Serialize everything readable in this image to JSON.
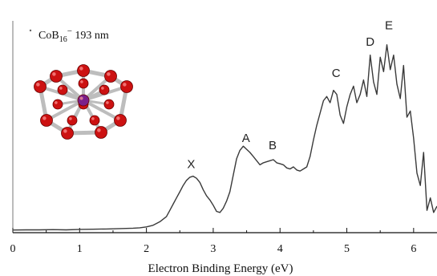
{
  "chart_data": {
    "type": "line",
    "xlabel": "Electron Binding Energy (eV)",
    "ylabel": "",
    "xlim": [
      0,
      6.35
    ],
    "ylim": [
      0,
      1.0
    ],
    "x_ticks": [
      0,
      1,
      2,
      3,
      4,
      5,
      6
    ],
    "x_tick_labels": [
      "0",
      "1",
      "2",
      "3",
      "4",
      "5",
      "6"
    ],
    "grid": false,
    "annotation": {
      "species_base": "CoB",
      "species_sub": "16",
      "species_sup": "−",
      "wavelength": " 193 nm"
    },
    "peak_labels": [
      {
        "text": "X",
        "x": 2.67,
        "y": 0.305
      },
      {
        "text": "A",
        "x": 3.49,
        "y": 0.43
      },
      {
        "text": "B",
        "x": 3.89,
        "y": 0.395
      },
      {
        "text": "C",
        "x": 4.84,
        "y": 0.745
      },
      {
        "text": "D",
        "x": 5.35,
        "y": 0.895
      },
      {
        "text": "E",
        "x": 5.63,
        "y": 0.975
      }
    ],
    "series": [
      {
        "color": "#3a3a3a",
        "x": [
          0.0,
          0.2,
          0.4,
          0.6,
          0.8,
          1.0,
          1.2,
          1.4,
          1.6,
          1.8,
          1.9,
          2.0,
          2.1,
          2.2,
          2.3,
          2.35,
          2.4,
          2.45,
          2.5,
          2.55,
          2.6,
          2.65,
          2.7,
          2.75,
          2.8,
          2.85,
          2.9,
          2.95,
          3.0,
          3.05,
          3.1,
          3.15,
          3.2,
          3.25,
          3.3,
          3.35,
          3.4,
          3.45,
          3.5,
          3.55,
          3.6,
          3.65,
          3.7,
          3.75,
          3.8,
          3.85,
          3.9,
          3.95,
          4.0,
          4.05,
          4.1,
          4.15,
          4.2,
          4.25,
          4.3,
          4.35,
          4.4,
          4.45,
          4.5,
          4.55,
          4.6,
          4.65,
          4.7,
          4.75,
          4.8,
          4.85,
          4.9,
          4.95,
          5.0,
          5.05,
          5.1,
          5.15,
          5.2,
          5.25,
          5.3,
          5.35,
          5.4,
          5.45,
          5.5,
          5.55,
          5.6,
          5.65,
          5.7,
          5.75,
          5.8,
          5.85,
          5.9,
          5.95,
          6.0,
          6.05,
          6.1,
          6.15,
          6.2,
          6.25,
          6.3,
          6.35
        ],
        "y": [
          0.005,
          0.006,
          0.006,
          0.007,
          0.006,
          0.008,
          0.009,
          0.01,
          0.012,
          0.014,
          0.016,
          0.02,
          0.028,
          0.045,
          0.07,
          0.1,
          0.13,
          0.16,
          0.19,
          0.22,
          0.245,
          0.26,
          0.265,
          0.255,
          0.235,
          0.2,
          0.17,
          0.15,
          0.125,
          0.095,
          0.09,
          0.11,
          0.145,
          0.19,
          0.27,
          0.35,
          0.39,
          0.41,
          0.395,
          0.38,
          0.36,
          0.34,
          0.32,
          0.33,
          0.335,
          0.34,
          0.345,
          0.33,
          0.325,
          0.32,
          0.305,
          0.3,
          0.31,
          0.295,
          0.29,
          0.3,
          0.31,
          0.36,
          0.44,
          0.51,
          0.57,
          0.63,
          0.65,
          0.62,
          0.68,
          0.66,
          0.56,
          0.52,
          0.6,
          0.66,
          0.7,
          0.62,
          0.66,
          0.73,
          0.65,
          0.85,
          0.72,
          0.66,
          0.84,
          0.77,
          0.9,
          0.78,
          0.85,
          0.71,
          0.64,
          0.8,
          0.55,
          0.58,
          0.45,
          0.28,
          0.22,
          0.38,
          0.1,
          0.16,
          0.09,
          0.12
        ]
      }
    ]
  },
  "inset_image": {
    "kind": "molecular-structure",
    "atom_color": "#cc1111",
    "center_atom_color": "#7a1f8a",
    "bond_color": "#bdbdbd"
  }
}
